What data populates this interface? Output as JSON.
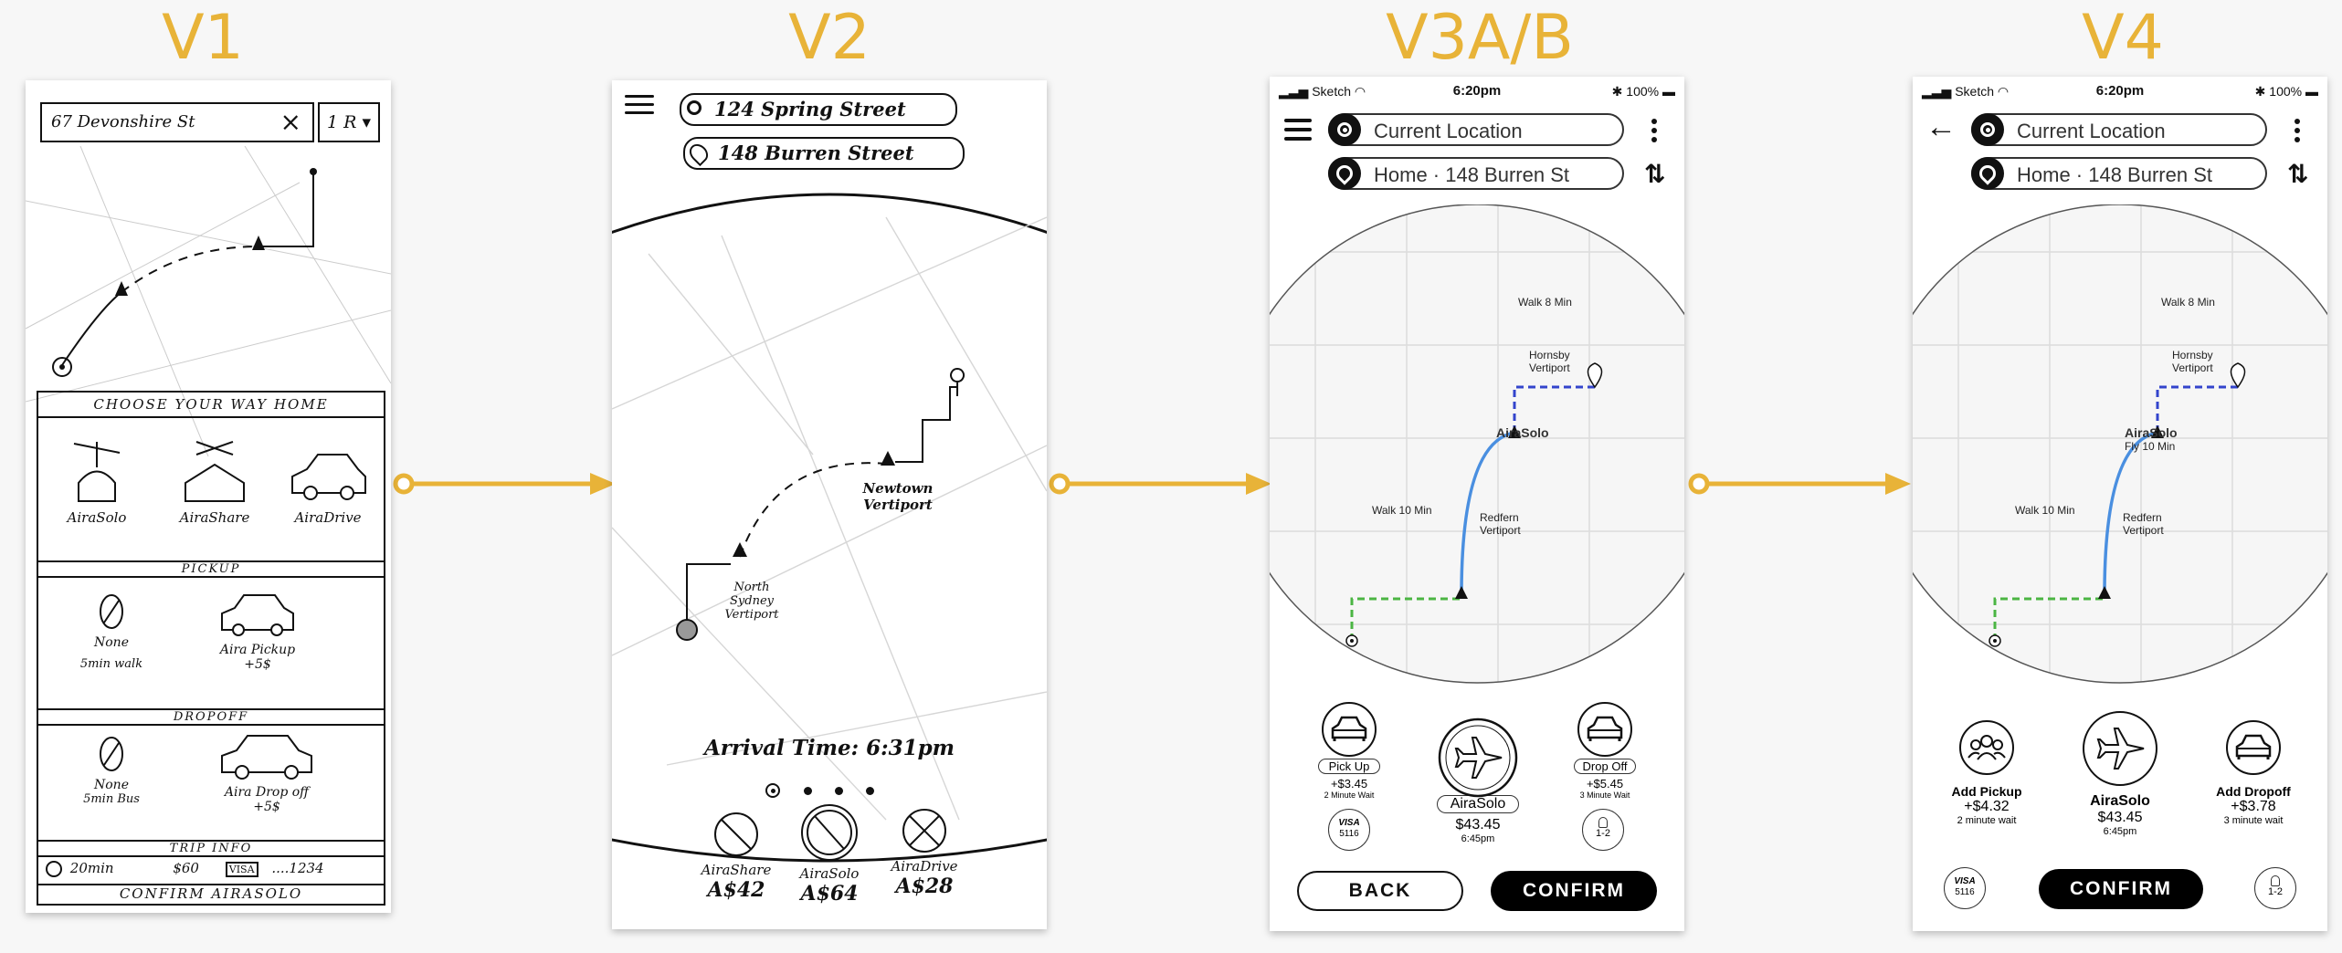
{
  "stages": [
    "V1",
    "V2",
    "V3A/B",
    "V4"
  ],
  "colors": {
    "accent": "#e8b338",
    "walk_start": "#4bb543",
    "walk_end": "#3344cc",
    "flight": "#4a8fe0"
  },
  "v1": {
    "search_text": "67 Devonshire St",
    "clear_icon": "×",
    "passengers": "1 R ▾",
    "choose_header": "CHOOSE YOUR WAY HOME",
    "options": [
      "AiraSolo",
      "AiraShare",
      "AiraDrive"
    ],
    "pickup_header": "PICKUP",
    "pickup_options": [
      {
        "name": "None",
        "detail": "5min walk"
      },
      {
        "name": "Aira Pickup",
        "detail": "+5$"
      }
    ],
    "dropoff_header": "DROPOFF",
    "dropoff_options": [
      {
        "name": "None",
        "detail": "5min Bus"
      },
      {
        "name": "Aira Drop off",
        "detail": "+5$"
      }
    ],
    "trip_header": "TRIP INFO",
    "trip_time": "20min",
    "trip_price": "$60",
    "card_brand": "VISA",
    "card_number": "....1234",
    "confirm": "CONFIRM AIRASOLO"
  },
  "v2": {
    "origin": "124 Spring Street",
    "destination": "148 Burren Street",
    "vertiport_a": "North Sydney Vertiport",
    "vertiport_b": "Newtown Vertiport",
    "arrival": "Arrival Time: 6:31pm",
    "options": [
      {
        "name": "AiraShare",
        "price": "A$42"
      },
      {
        "name": "AiraSolo",
        "price": "A$64"
      },
      {
        "name": "AiraDrive",
        "price": "A$28"
      }
    ]
  },
  "v3": {
    "status": {
      "carrier": "Sketch",
      "time": "6:20pm",
      "battery": "100%"
    },
    "origin": "Current Location",
    "destination": "Home · 148 Burren St",
    "walk_start": "Walk 10 Min",
    "walk_end": "Walk 8 Min",
    "vertiport_start": "Redfern Vertiport",
    "vertiport_end": "Hornsby Vertiport",
    "flight_label": "AiraSolo",
    "pickup": {
      "label": "Pick Up",
      "price": "+$3.45",
      "wait": "2 Minute Wait"
    },
    "main": {
      "label": "AiraSolo",
      "price": "$43.45",
      "time": "6:45pm"
    },
    "dropoff": {
      "label": "Drop Off",
      "price": "+$5.45",
      "wait": "3 Minute Wait"
    },
    "card_brand": "VISA",
    "card_number": "5116",
    "passengers": "1-2",
    "back": "BACK",
    "confirm": "CONFIRM"
  },
  "v4": {
    "status": {
      "carrier": "Sketch",
      "time": "6:20pm",
      "battery": "100%"
    },
    "origin": "Current Location",
    "destination": "Home · 148 Burren St",
    "walk_start": "Walk 10 Min",
    "walk_end": "Walk 8 Min",
    "vertiport_start": "Redfern Vertiport",
    "vertiport_end": "Hornsby Vertiport",
    "flight_label": "AiraSolo",
    "flight_time": "Fly 10 Min",
    "pickup": {
      "label": "Add Pickup",
      "price": "+$4.32",
      "wait": "2 minute wait"
    },
    "main": {
      "label": "AiraSolo",
      "price": "$43.45",
      "time": "6:45pm"
    },
    "dropoff": {
      "label": "Add Dropoff",
      "price": "+$3.78",
      "wait": "3 minute wait"
    },
    "card_brand": "VISA",
    "card_number": "5116",
    "passengers": "1-2",
    "confirm": "CONFIRM"
  }
}
